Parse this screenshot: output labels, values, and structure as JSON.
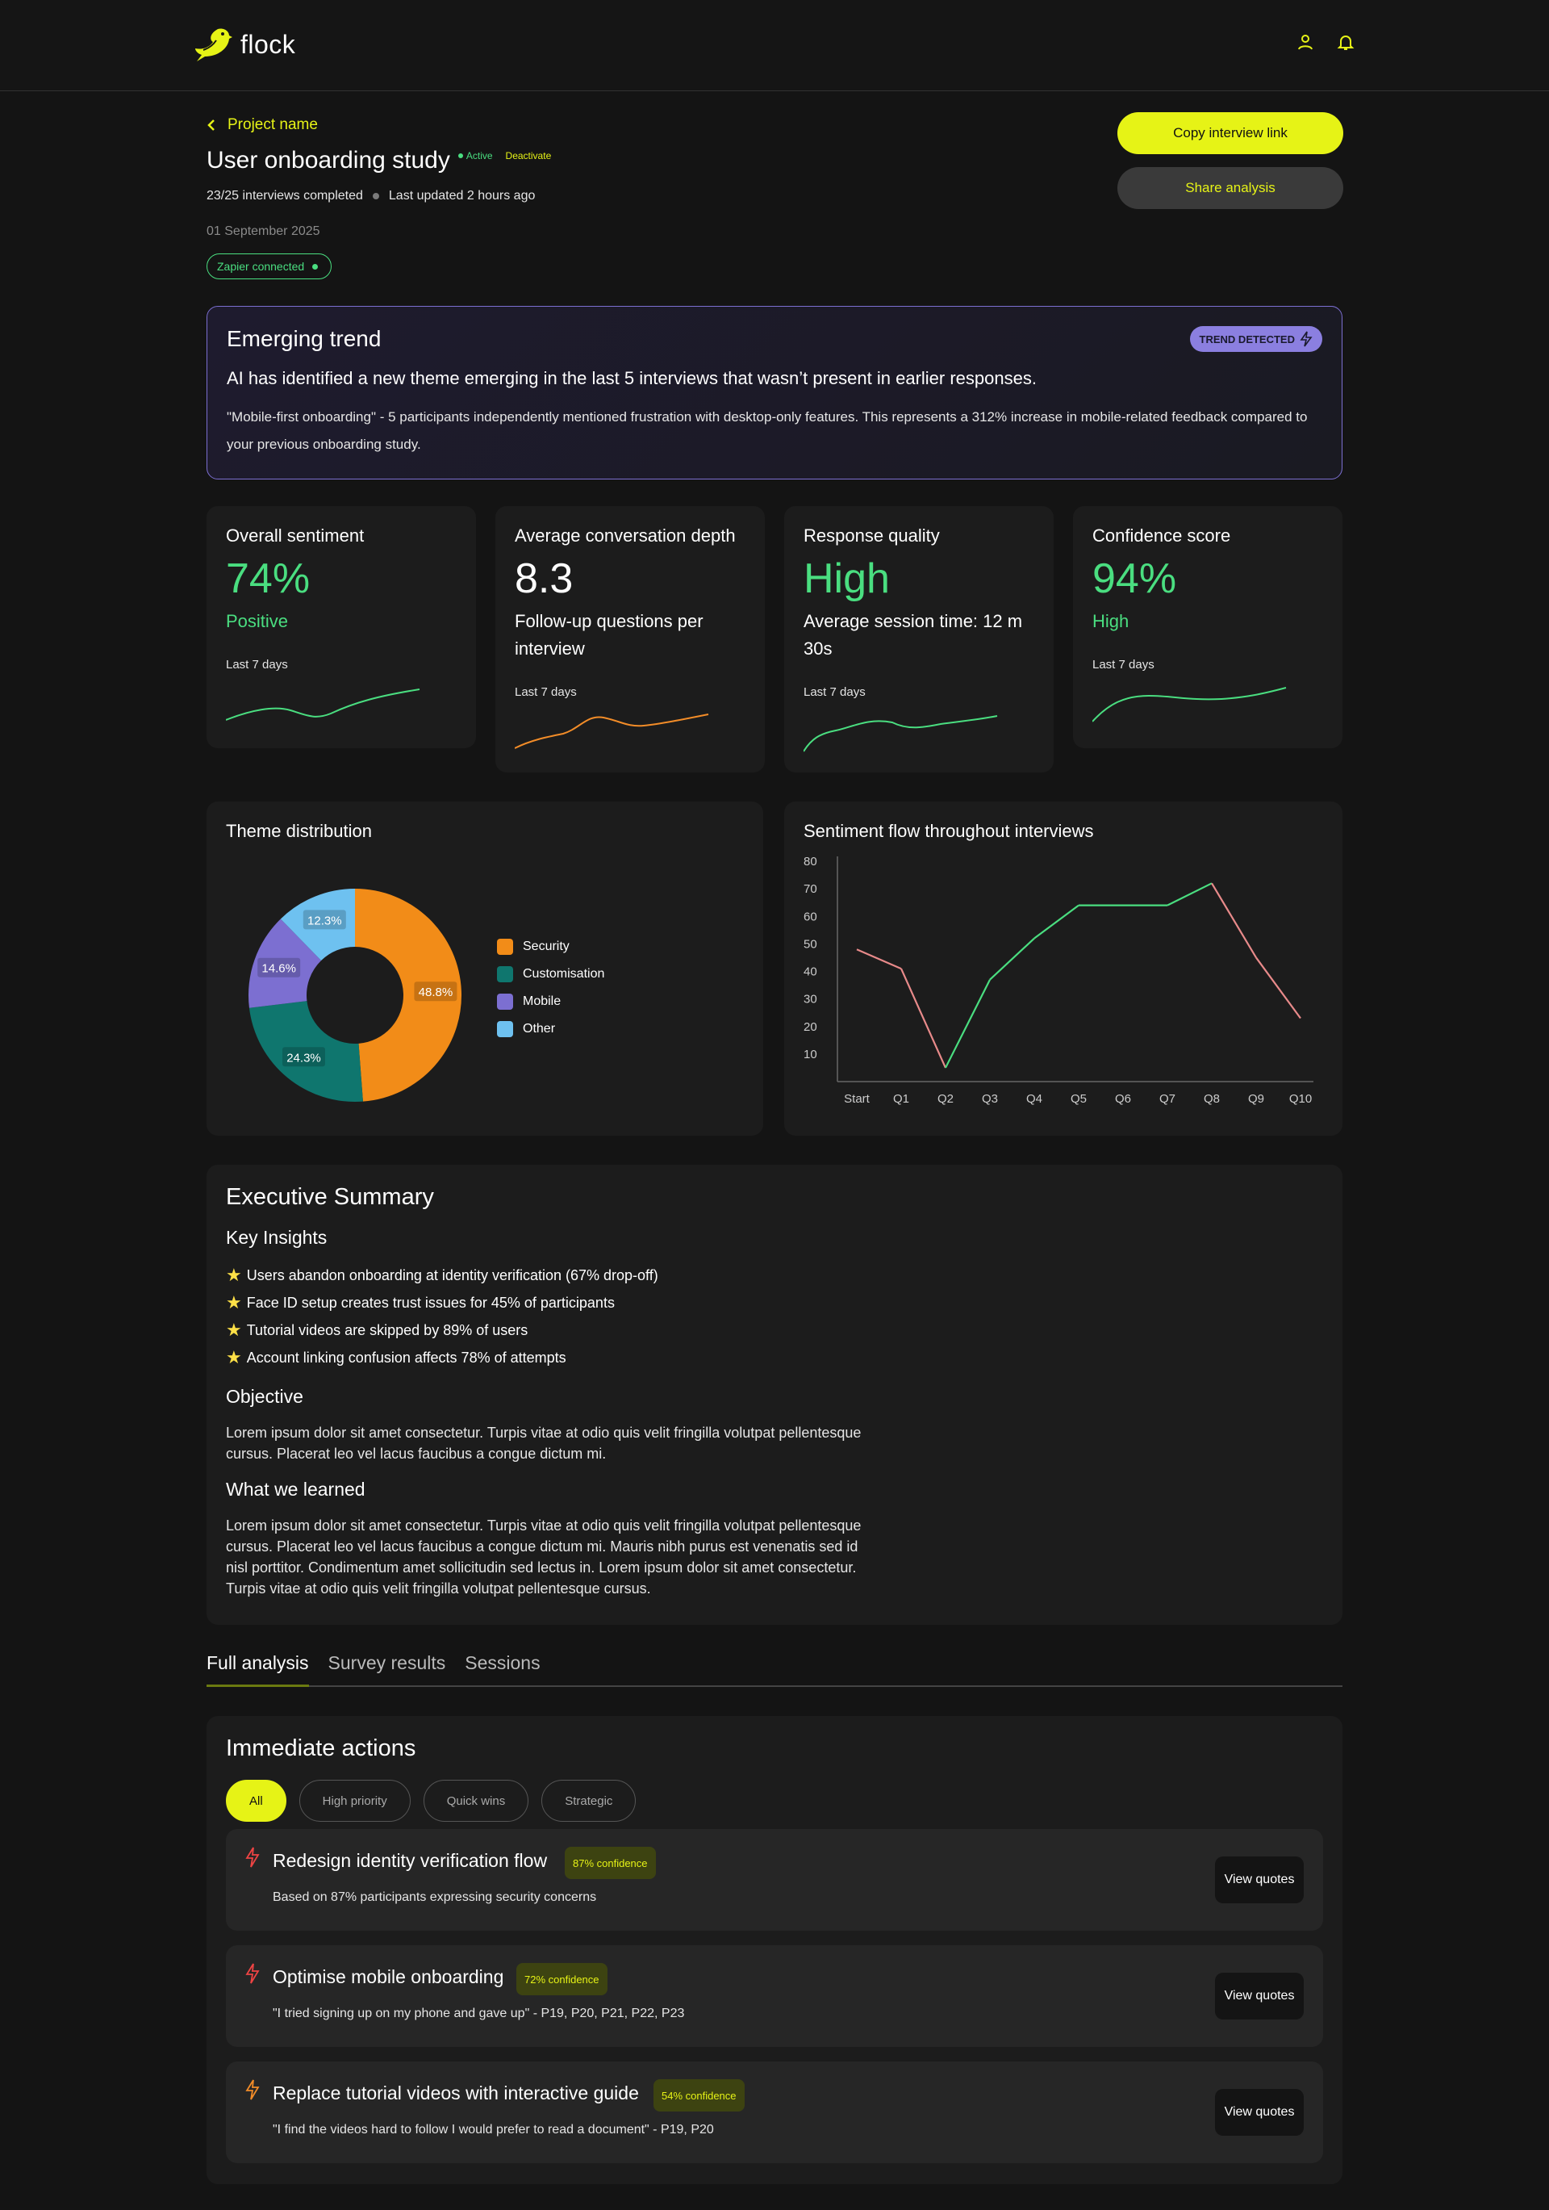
{
  "app": {
    "logo_text": "flock"
  },
  "header": {
    "back_label": "Project name",
    "title": "User onboarding study",
    "status": "Active",
    "deactivate_label": "Deactivate",
    "interviews": "23/25 interviews completed",
    "updated": "Last updated 2 hours ago",
    "date": "01 September 2025",
    "integration": "Zapier connected",
    "copy_link_label": "Copy interview link",
    "share_label": "Share analysis"
  },
  "trend": {
    "title": "Emerging trend",
    "badge": "TREND DETECTED",
    "lead": "AI has identified a new theme emerging in the last 5 interviews that wasn’t present in earlier responses.",
    "body": "\"Mobile-first onboarding\" - 5 participants  independently mentioned frustration with desktop-only features. This  represents a 312% increase in mobile-related feedback compared to your  previous onboarding study."
  },
  "metrics": [
    {
      "label": "Overall sentiment",
      "value": "74%",
      "sub": "Positive",
      "period": "Last 7 days",
      "color": "#4ade80",
      "spark_color": "#4ade80"
    },
    {
      "label": "Average conversation depth",
      "value": "8.3",
      "sub": "Follow-up questions per interview",
      "period": "Last 7 days",
      "color": "#ffffff",
      "spark_color": "#f28c28"
    },
    {
      "label": "Response quality",
      "value": "High",
      "sub": "Average session time: 12 m 30s",
      "period": "Last 7 days",
      "color": "#4ade80",
      "spark_color": "#4ade80"
    },
    {
      "label": "Confidence score",
      "value": "94%",
      "sub": "High",
      "period": "Last 7 days",
      "color": "#4ade80",
      "spark_color": "#4ade80"
    }
  ],
  "theme_chart": {
    "title": "Theme distribution",
    "chart_data": {
      "type": "pie",
      "categories": [
        "Security",
        "Customisation",
        "Mobile",
        "Other"
      ],
      "values": [
        48.8,
        24.3,
        14.6,
        12.3
      ],
      "labels": [
        "48.8%",
        "24.3%",
        "14.6%",
        "12.3%"
      ],
      "colors": [
        "#f28c18",
        "#0f766e",
        "#7c6fd1",
        "#6ec1f0"
      ]
    }
  },
  "sentiment_chart": {
    "title": "Sentiment flow throughout interviews",
    "chart_data": {
      "type": "line",
      "categories": [
        "Start",
        "Q1",
        "Q2",
        "Q3",
        "Q4",
        "Q5",
        "Q6",
        "Q7",
        "Q8",
        "Q9",
        "Q10"
      ],
      "values": [
        48,
        41,
        5,
        37,
        52,
        64,
        64,
        64,
        72,
        45,
        23
      ],
      "yticks": [
        10,
        20,
        30,
        40,
        50,
        60,
        70,
        80
      ],
      "ylim": [
        0,
        80
      ],
      "colors": {
        "positive": "#4ade80",
        "neutral": "#aaaaaa",
        "negative": "#e88a8a"
      }
    }
  },
  "summary": {
    "title": "Executive Summary",
    "insights_title": "Key Insights",
    "insights": [
      "Users abandon onboarding at identity verification (67% drop-off)",
      "Face ID setup creates trust issues for 45% of participants",
      "Tutorial videos are skipped by 89% of users",
      "Account linking confusion affects 78% of attempts"
    ],
    "objective_title": "Objective",
    "objective": "Lorem ipsum dolor sit amet consectetur. Turpis vitae at odio quis velit fringilla volutpat pellentesque cursus. Placerat leo vel lacus faucibus a congue dictum mi.",
    "learned_title": "What we learned",
    "learned": "Lorem ipsum dolor sit amet consectetur. Turpis vitae at odio quis velit fringilla volutpat pellentesque cursus. Placerat leo vel lacus faucibus a congue dictum mi. Mauris nibh purus est venenatis sed id nisl porttitor. Condimentum amet sollicitudin sed lectus in. Lorem ipsum dolor sit amet consectetur. Turpis vitae at odio quis velit fringilla volutpat pellentesque cursus."
  },
  "tabs": [
    "Full analysis",
    "Survey results",
    "Sessions"
  ],
  "actions": {
    "title": "Immediate actions",
    "filters": [
      "All",
      "High priority",
      "Quick wins",
      "Strategic"
    ],
    "view_quotes_label": "View quotes",
    "items": [
      {
        "title": "Redesign identity verification flow",
        "confidence": "87% confidence",
        "desc": "Based on 87% participants expressing security concerns",
        "icon_color": "#ef4444"
      },
      {
        "title": "Optimise mobile onboarding",
        "confidence": "72% confidence",
        "desc": "\"I tried signing up on my phone and gave up\" - P19, P20, P21, P22, P23",
        "icon_color": "#ef4444"
      },
      {
        "title": "Replace tutorial videos with interactive guide",
        "confidence": "54% confidence",
        "desc": "\"I find the videos hard to follow I would prefer to read a document\" - P19, P20",
        "icon_color": "#f28c28"
      }
    ]
  }
}
